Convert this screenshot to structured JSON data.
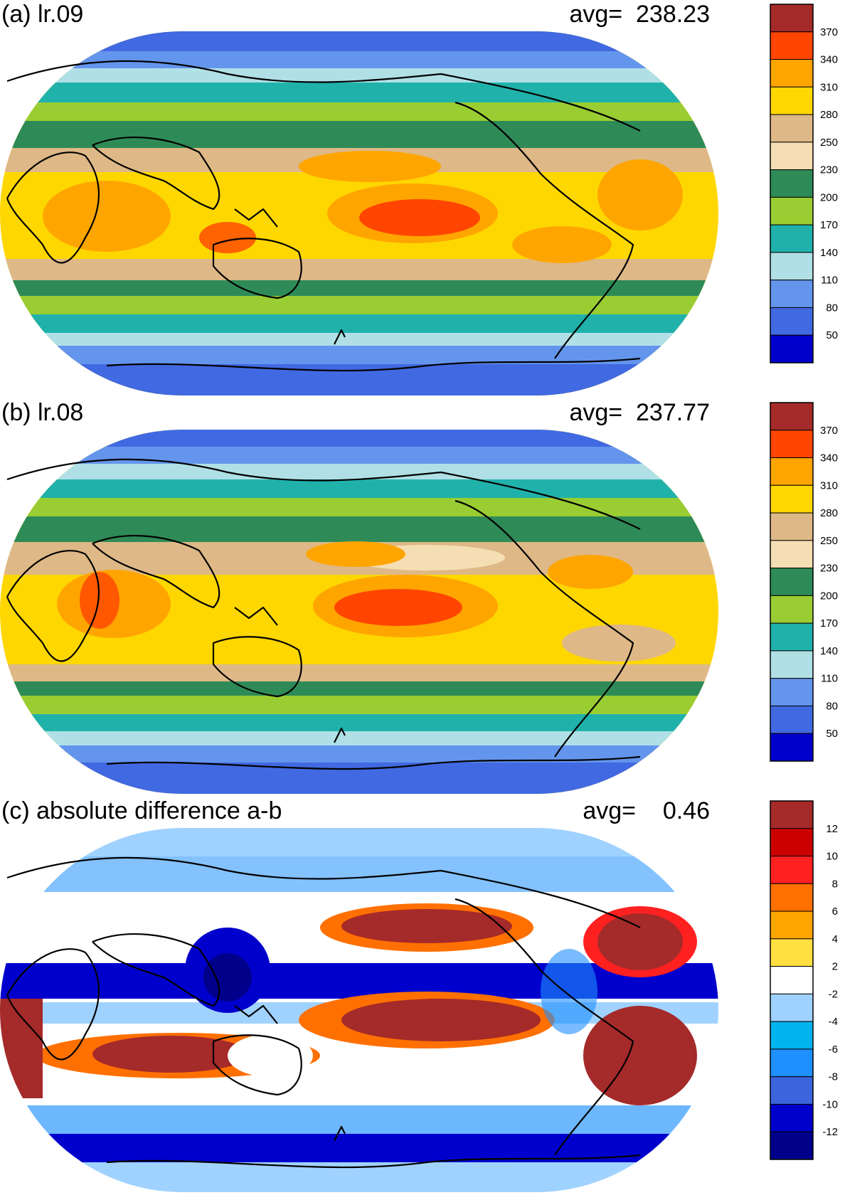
{
  "panels": [
    {
      "id": "a",
      "title": "(a) lr.09",
      "avg_label": "avg=  238.23",
      "colorbar": {
        "labels": [
          "370",
          "340",
          "310",
          "280",
          "250",
          "230",
          "200",
          "170",
          "140",
          "110",
          "80",
          "50"
        ],
        "colors": [
          "#a52a2a",
          "#ff4500",
          "#ffa500",
          "#ffd700",
          "#deb887",
          "#f5deb3",
          "#2e8b57",
          "#9acd32",
          "#20b2aa",
          "#b0e0e6",
          "#6495ed",
          "#4169e1",
          "#0000cd"
        ]
      }
    },
    {
      "id": "b",
      "title": "(b) lr.08",
      "avg_label": "avg=  237.77",
      "colorbar": {
        "labels": [
          "370",
          "340",
          "310",
          "280",
          "250",
          "230",
          "200",
          "170",
          "140",
          "110",
          "80",
          "50"
        ],
        "colors": [
          "#a52a2a",
          "#ff4500",
          "#ffa500",
          "#ffd700",
          "#deb887",
          "#f5deb3",
          "#2e8b57",
          "#9acd32",
          "#20b2aa",
          "#b0e0e6",
          "#6495ed",
          "#4169e1",
          "#0000cd"
        ]
      }
    },
    {
      "id": "c",
      "title": "(c) absolute difference a-b",
      "avg_label": "avg=    0.46",
      "colorbar": {
        "labels": [
          "12",
          "10",
          "8",
          "6",
          "4",
          "2",
          "-2",
          "-4",
          "-6",
          "-8",
          "-10",
          "-12"
        ],
        "colors": [
          "#a52a2a",
          "#cd0000",
          "#ff2020",
          "#ff7000",
          "#ffa500",
          "#ffe040",
          "#ffffff",
          "#a0d2ff",
          "#00b4f0",
          "#1e90ff",
          "#3c64dc",
          "#0000cd",
          "#00008b"
        ]
      }
    }
  ]
}
